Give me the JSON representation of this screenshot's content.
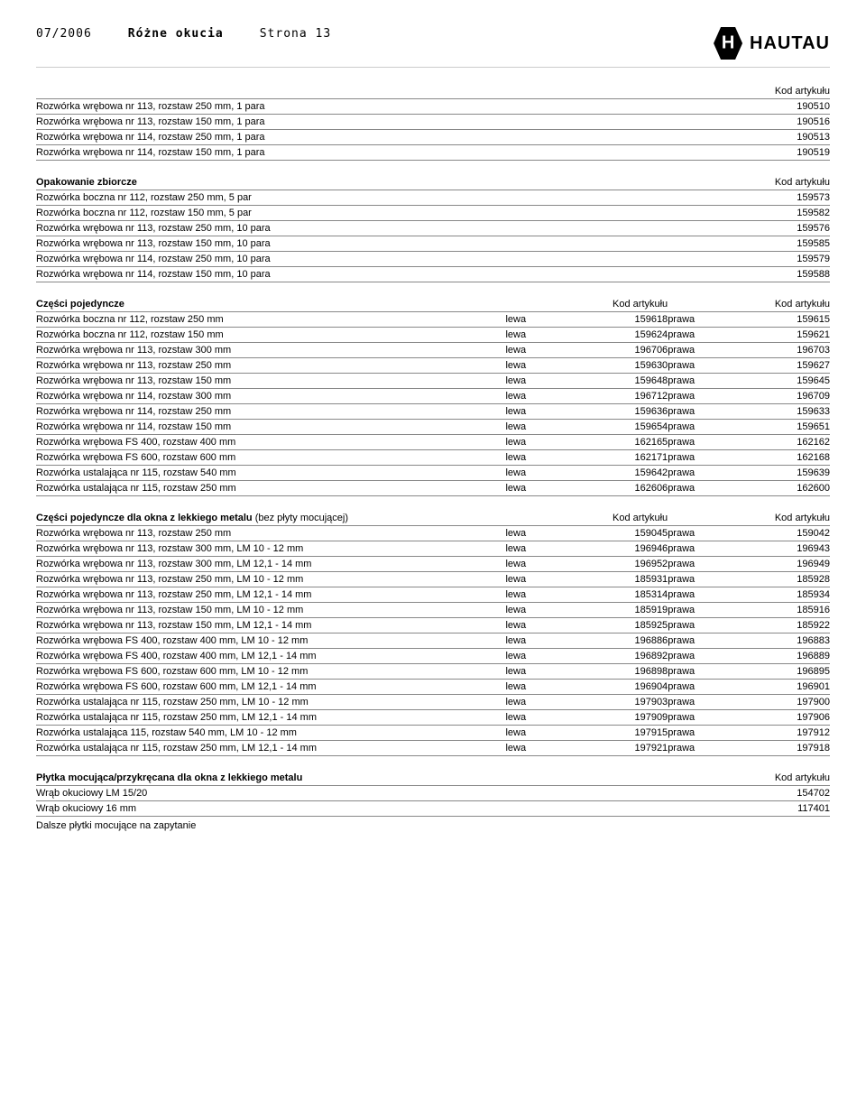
{
  "header": {
    "date": "07/2006",
    "title": "Różne okucia",
    "page": "Strona 13",
    "brand": "HAUTAU"
  },
  "table1": {
    "header_code": "Kod artykułu",
    "rows": [
      {
        "d": "Rozwórka wrębowa nr 113, rozstaw 250 mm, 1 para",
        "c": "190510"
      },
      {
        "d": "Rozwórka wrębowa nr 113, rozstaw 150 mm, 1 para",
        "c": "190516"
      },
      {
        "d": "Rozwórka wrębowa nr 114, rozstaw 250 mm, 1 para",
        "c": "190513"
      },
      {
        "d": "Rozwórka wrębowa nr 114, rozstaw 150 mm, 1 para",
        "c": "190519"
      }
    ]
  },
  "table2": {
    "title": "Opakowanie zbiorcze",
    "header_code": "Kod artykułu",
    "rows": [
      {
        "d": "Rozwórka boczna nr 112, rozstaw 250 mm, 5 par",
        "c": "159573"
      },
      {
        "d": "Rozwórka boczna nr 112, rozstaw 150 mm, 5 par",
        "c": "159582"
      },
      {
        "d": "Rozwórka wrębowa nr 113, rozstaw 250 mm, 10 para",
        "c": "159576"
      },
      {
        "d": "Rozwórka wrębowa nr 113, rozstaw 150 mm, 10 para",
        "c": "159585"
      },
      {
        "d": "Rozwórka wrębowa nr 114, rozstaw 250 mm, 10 para",
        "c": "159579"
      },
      {
        "d": "Rozwórka wrębowa nr 114, rozstaw 150 mm, 10 para",
        "c": "159588"
      }
    ]
  },
  "table3": {
    "title": "Części pojedyncze",
    "h_code": "Kod artykułu",
    "side1": "lewa",
    "side2": "prawa",
    "rows": [
      {
        "d": "Rozwórka boczna nr 112, rozstaw 250 mm",
        "c1": "159618",
        "c2": "159615"
      },
      {
        "d": "Rozwórka boczna nr 112, rozstaw 150 mm",
        "c1": "159624",
        "c2": "159621"
      },
      {
        "d": "Rozwórka wrębowa nr 113, rozstaw 300 mm",
        "c1": "196706",
        "c2": "196703"
      },
      {
        "d": "Rozwórka wrębowa nr 113, rozstaw 250 mm",
        "c1": "159630",
        "c2": "159627"
      },
      {
        "d": "Rozwórka wrębowa nr 113, rozstaw 150 mm",
        "c1": "159648",
        "c2": "159645"
      },
      {
        "d": "Rozwórka wrębowa nr 114, rozstaw 300 mm",
        "c1": "196712",
        "c2": "196709"
      },
      {
        "d": "Rozwórka wrębowa nr 114, rozstaw 250 mm",
        "c1": "159636",
        "c2": "159633"
      },
      {
        "d": "Rozwórka wrębowa nr 114, rozstaw 150 mm",
        "c1": "159654",
        "c2": "159651"
      },
      {
        "d": "Rozwórka wrębowa FS 400, rozstaw 400 mm",
        "c1": "162165",
        "c2": "162162"
      },
      {
        "d": "Rozwórka wrębowa FS 600, rozstaw 600 mm",
        "c1": "162171",
        "c2": "162168"
      },
      {
        "d": "Rozwórka ustalająca nr 115, rozstaw 540 mm",
        "c1": "159642",
        "c2": "159639"
      },
      {
        "d": "Rozwórka ustalająca nr 115, rozstaw 250 mm",
        "c1": "162606",
        "c2": "162600"
      }
    ]
  },
  "table4": {
    "title": "Części pojedyncze dla okna z lekkiego metalu",
    "title_suffix": " (bez płyty mocującej)",
    "h_code": "Kod artykułu",
    "side1": "lewa",
    "side2": "prawa",
    "rows": [
      {
        "d": "Rozwórka wrębowa nr 113, rozstaw 250 mm",
        "c1": "159045",
        "c2": "159042"
      },
      {
        "d": "Rozwórka wrębowa nr 113, rozstaw 300 mm, LM 10 - 12 mm",
        "c1": "196946",
        "c2": "196943"
      },
      {
        "d": "Rozwórka wrębowa nr 113, rozstaw 300 mm, LM 12,1 - 14 mm",
        "c1": "196952",
        "c2": "196949"
      },
      {
        "d": "Rozwórka wrębowa nr 113, rozstaw 250 mm, LM 10 - 12 mm",
        "c1": "185931",
        "c2": "185928"
      },
      {
        "d": "Rozwórka wrębowa nr 113, rozstaw 250 mm, LM 12,1 - 14 mm",
        "c1": "185314",
        "c2": "185934"
      },
      {
        "d": "Rozwórka wrębowa nr 113, rozstaw 150 mm, LM 10 - 12 mm",
        "c1": "185919",
        "c2": "185916"
      },
      {
        "d": "Rozwórka wrębowa nr 113, rozstaw 150 mm, LM 12,1 - 14 mm",
        "c1": "185925",
        "c2": "185922"
      },
      {
        "d": "Rozwórka wrębowa FS 400, rozstaw 400 mm, LM 10 - 12 mm",
        "c1": "196886",
        "c2": "196883"
      },
      {
        "d": "Rozwórka wrębowa FS 400, rozstaw 400 mm, LM 12,1 - 14 mm",
        "c1": "196892",
        "c2": "196889"
      },
      {
        "d": "Rozwórka wrębowa FS 600, rozstaw 600 mm, LM 10 - 12 mm",
        "c1": "196898",
        "c2": "196895"
      },
      {
        "d": "Rozwórka wrębowa FS 600, rozstaw 600 mm, LM 12,1 - 14 mm",
        "c1": "196904",
        "c2": "196901"
      },
      {
        "d": "Rozwórka ustalająca nr 115, rozstaw 250 mm, LM 10 - 12 mm",
        "c1": "197903",
        "c2": "197900"
      },
      {
        "d": "Rozwórka ustalająca nr 115, rozstaw 250 mm, LM 12,1 - 14 mm",
        "c1": "197909",
        "c2": "197906"
      },
      {
        "d": "Rozwórka ustalająca 115, rozstaw 540 mm, LM 10 - 12 mm",
        "c1": "197915",
        "c2": "197912"
      },
      {
        "d": "Rozwórka ustalająca nr 115, rozstaw 250 mm, LM 12,1 - 14 mm",
        "c1": "197921",
        "c2": "197918"
      }
    ]
  },
  "table5": {
    "title": "Płytka mocująca/przykręcana dla okna z lekkiego metalu",
    "header_code": "Kod artykułu",
    "rows": [
      {
        "d": "Wrąb okuciowy LM 15/20",
        "c": "154702"
      },
      {
        "d": "Wrąb okuciowy 16 mm",
        "c": "117401"
      }
    ],
    "note": "Dalsze płytki mocujące na zapytanie"
  }
}
